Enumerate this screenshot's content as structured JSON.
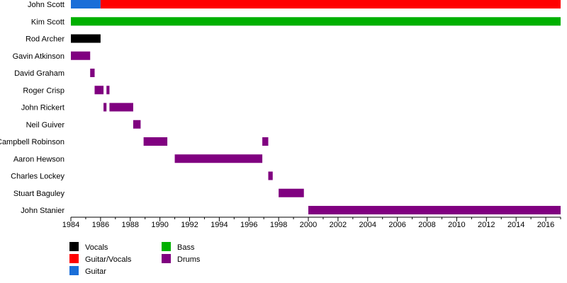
{
  "chart_data": {
    "type": "bar",
    "orientation": "horizontal-timeline",
    "title": "",
    "xlabel": "",
    "ylabel": "",
    "xlim": [
      1984,
      2017
    ],
    "x_ticks": [
      "1984",
      "1986",
      "1988",
      "1990",
      "1992",
      "1994",
      "1996",
      "1998",
      "2000",
      "2002",
      "2004",
      "2006",
      "2008",
      "2010",
      "2012",
      "2014",
      "2016"
    ],
    "members": [
      "John Scott",
      "Kim Scott",
      "Rod Archer",
      "Gavin Atkinson",
      "David Graham",
      "Roger Crisp",
      "John Rickert",
      "Neil Guiver",
      "Campbell Robinson",
      "Aaron Hewson",
      "Charles Lockey",
      "Stuart Baguley",
      "John Stanier"
    ],
    "roles": [
      {
        "name": "Vocals",
        "color": "#000000"
      },
      {
        "name": "Guitar/Vocals",
        "color": "#ff0000"
      },
      {
        "name": "Guitar",
        "color": "#1a6ed8"
      },
      {
        "name": "Bass",
        "color": "#00b000"
      },
      {
        "name": "Drums",
        "color": "#800080"
      }
    ],
    "legend_position": "bottom-left",
    "grid": false,
    "spans": [
      {
        "member": "John Scott",
        "role": "Guitar",
        "start": 1984.0,
        "end": 1986.0
      },
      {
        "member": "John Scott",
        "role": "Guitar/Vocals",
        "start": 1986.0,
        "end": 2017.0
      },
      {
        "member": "Kim Scott",
        "role": "Bass",
        "start": 1984.0,
        "end": 2017.0
      },
      {
        "member": "Rod Archer",
        "role": "Vocals",
        "start": 1984.0,
        "end": 1986.0
      },
      {
        "member": "Gavin Atkinson",
        "role": "Drums",
        "start": 1984.0,
        "end": 1985.3
      },
      {
        "member": "David Graham",
        "role": "Drums",
        "start": 1985.3,
        "end": 1985.6
      },
      {
        "member": "Roger Crisp",
        "role": "Drums",
        "start": 1985.6,
        "end": 1986.2
      },
      {
        "member": "Roger Crisp",
        "role": "Drums",
        "start": 1986.4,
        "end": 1986.6
      },
      {
        "member": "John Rickert",
        "role": "Drums",
        "start": 1986.2,
        "end": 1986.4
      },
      {
        "member": "John Rickert",
        "role": "Drums",
        "start": 1986.6,
        "end": 1988.2
      },
      {
        "member": "Neil Guiver",
        "role": "Drums",
        "start": 1988.2,
        "end": 1988.7
      },
      {
        "member": "Campbell Robinson",
        "role": "Drums",
        "start": 1988.9,
        "end": 1990.5
      },
      {
        "member": "Campbell Robinson",
        "role": "Drums",
        "start": 1996.9,
        "end": 1997.3
      },
      {
        "member": "Aaron Hewson",
        "role": "Drums",
        "start": 1991.0,
        "end": 1996.9
      },
      {
        "member": "Charles Lockey",
        "role": "Drums",
        "start": 1997.3,
        "end": 1997.6
      },
      {
        "member": "Stuart Baguley",
        "role": "Drums",
        "start": 1998.0,
        "end": 1999.7
      },
      {
        "member": "John Stanier",
        "role": "Drums",
        "start": 2000.0,
        "end": 2017.0
      }
    ]
  }
}
